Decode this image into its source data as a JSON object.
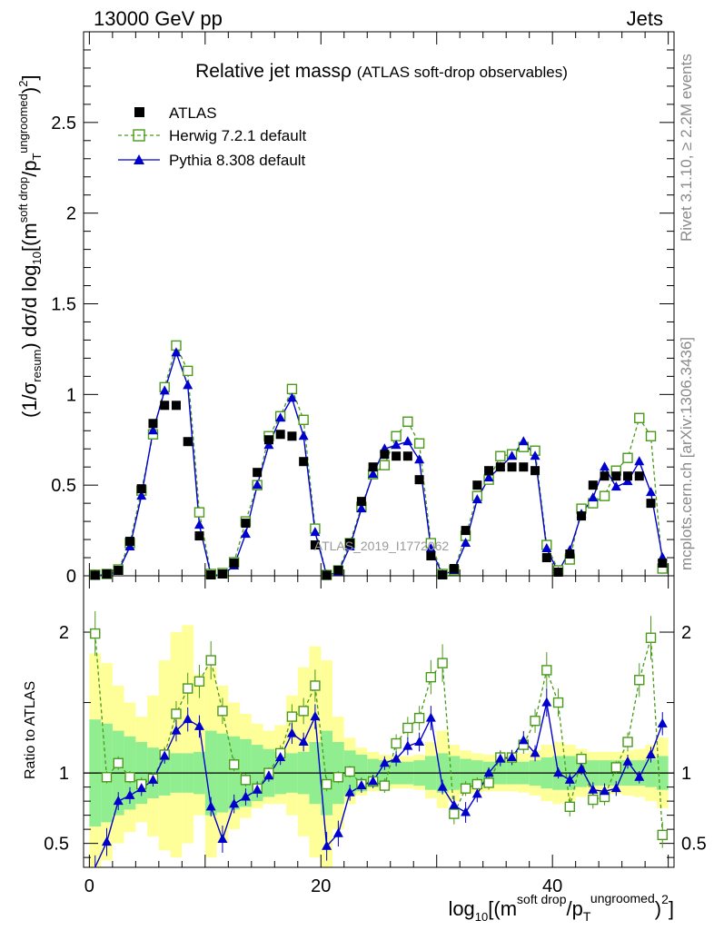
{
  "header": {
    "left": "13000 GeV pp",
    "right": "Jets"
  },
  "side_labels": {
    "rivet": "Rivet 3.1.10, ≥ 2.2M events",
    "mcplots": "mcplots.cern.ch [arXiv:1306.3436]"
  },
  "colors": {
    "atlas": "#000000",
    "herwig": "#4a9a1a",
    "pythia": "#0000cc",
    "band_inner": "#90ee90",
    "band_outer": "#ffff99"
  },
  "chart_data": [
    {
      "type": "scatter",
      "panel": "main",
      "title": "Relative jet massρ",
      "title_suffix": "(ATLAS soft-drop observables)",
      "ylabel": "(1/σresum) dσ/d log10[(m^soft drop/pT^ungroomed)^2]",
      "ylabel_parts": {
        "a": "(1/σ",
        "b": "resum",
        "c": ") dσ/d log",
        "d": "10",
        "e": "[(m",
        "f": "soft drop",
        "g": "/p",
        "h": "T",
        "i": "ungroomed",
        "j": ")",
        "k": "2",
        "l": "]"
      },
      "xlim": [
        -0.5,
        50.5
      ],
      "ylim": [
        0,
        3.0
      ],
      "yticks": [
        "0",
        "0.5",
        "1",
        "1.5",
        "2",
        "2.5"
      ],
      "watermark": "ATLAS_2019_I1772062",
      "x": [
        0.5,
        1.5,
        2.5,
        3.5,
        4.5,
        5.5,
        6.5,
        7.5,
        8.5,
        9.5,
        10.5,
        11.5,
        12.5,
        13.5,
        14.5,
        15.5,
        16.5,
        17.5,
        18.5,
        19.5,
        20.5,
        21.5,
        22.5,
        23.5,
        24.5,
        25.5,
        26.5,
        27.5,
        28.5,
        29.5,
        30.5,
        31.5,
        32.5,
        33.5,
        34.5,
        35.5,
        36.5,
        37.5,
        38.5,
        39.5,
        40.5,
        41.5,
        42.5,
        43.5,
        44.5,
        45.5,
        46.5,
        47.5,
        48.5,
        49.5
      ],
      "series": [
        {
          "name": "ATLAS",
          "legend": "ATLAS",
          "values": [
            0.003,
            0.01,
            0.03,
            0.19,
            0.48,
            0.84,
            0.94,
            0.94,
            0.74,
            0.22,
            0.005,
            0.01,
            0.07,
            0.29,
            0.57,
            0.75,
            0.78,
            0.77,
            0.63,
            0.17,
            0.003,
            0.03,
            0.18,
            0.41,
            0.6,
            0.67,
            0.66,
            0.66,
            0.53,
            0.11,
            0.005,
            0.04,
            0.25,
            0.5,
            0.58,
            0.6,
            0.6,
            0.6,
            0.58,
            0.1,
            0.02,
            0.12,
            0.33,
            0.5,
            0.55,
            0.55,
            0.55,
            0.55,
            0.4,
            0.07
          ]
        },
        {
          "name": "Herwig 7.2.1 default",
          "legend": "Herwig 7.2.1 default",
          "values": [
            0.006,
            0.01,
            0.035,
            0.18,
            0.47,
            0.78,
            1.04,
            1.27,
            1.13,
            0.35,
            0.01,
            0.015,
            0.075,
            0.3,
            0.5,
            0.77,
            0.88,
            1.03,
            0.86,
            0.26,
            0.005,
            0.03,
            0.18,
            0.38,
            0.56,
            0.61,
            0.77,
            0.85,
            0.73,
            0.18,
            0.01,
            0.03,
            0.22,
            0.44,
            0.53,
            0.66,
            0.67,
            0.71,
            0.69,
            0.17,
            0.03,
            0.09,
            0.37,
            0.4,
            0.44,
            0.58,
            0.65,
            0.87,
            0.77,
            0.04
          ]
        },
        {
          "name": "Pythia 8.308 default",
          "legend": "Pythia 8.308 default",
          "values": [
            0.002,
            0.005,
            0.025,
            0.16,
            0.44,
            0.8,
            1.02,
            1.23,
            1.05,
            0.28,
            0.003,
            0.005,
            0.055,
            0.23,
            0.5,
            0.72,
            0.87,
            0.98,
            0.77,
            0.24,
            0.002,
            0.02,
            0.16,
            0.37,
            0.56,
            0.7,
            0.72,
            0.74,
            0.64,
            0.15,
            0.005,
            0.03,
            0.18,
            0.42,
            0.54,
            0.6,
            0.66,
            0.74,
            0.66,
            0.15,
            0.02,
            0.14,
            0.34,
            0.43,
            0.6,
            0.49,
            0.52,
            0.63,
            0.46,
            0.1
          ]
        }
      ]
    },
    {
      "type": "line",
      "panel": "ratio",
      "ylabel": "Ratio to ATLAS",
      "xlabel": "log10[(m^soft drop/pT^ungroomed)^2]",
      "xlabel_parts": {
        "a": "log",
        "b": "10",
        "c": "[(m",
        "d": "soft drop",
        "e": "/p",
        "f": "T",
        "g": "ungroomed",
        "h": ")",
        "i": "2",
        "j": "]"
      },
      "xlim": [
        -0.5,
        50.5
      ],
      "ylim": [
        0.33,
        2.4
      ],
      "yticks": [
        "0.5",
        "1",
        "2"
      ],
      "xticks": [
        "0",
        "20",
        "40"
      ],
      "series": [
        {
          "name": "Herwig 7.2.1 default",
          "values": [
            1.99,
            0.97,
            1.07,
            0.97,
            0.92,
            0.96,
            1.13,
            1.42,
            1.6,
            1.65,
            1.8,
            1.44,
            1.06,
            0.95,
            0.89,
            1.0,
            1.14,
            1.4,
            1.44,
            1.62,
            0.92,
            0.97,
            1.01,
            0.92,
            0.94,
            0.91,
            1.21,
            1.32,
            1.39,
            1.68,
            1.78,
            0.71,
            0.89,
            0.92,
            0.93,
            1.11,
            1.11,
            1.2,
            1.37,
            1.73,
            1.5,
            0.76,
            1.1,
            0.81,
            0.83,
            1.04,
            1.22,
            1.66,
            1.96,
            0.56
          ]
        },
        {
          "name": "Pythia 8.308 default",
          "values": [
            0.29,
            0.51,
            0.8,
            0.84,
            0.89,
            0.95,
            1.12,
            1.3,
            1.38,
            1.33,
            0.76,
            0.53,
            0.78,
            0.83,
            0.88,
            0.98,
            1.11,
            1.28,
            1.22,
            1.4,
            0.48,
            0.57,
            0.86,
            0.91,
            0.94,
            1.07,
            1.1,
            1.19,
            1.22,
            1.39,
            0.9,
            0.77,
            0.72,
            0.85,
            1.0,
            1.1,
            1.11,
            1.23,
            1.14,
            1.5,
            1.0,
            0.95,
            1.03,
            0.88,
            0.87,
            0.89,
            1.08,
            0.97,
            1.13,
            1.35
          ]
        },
        {
          "name": "ATLAS band inner",
          "values_low": [
            0.62,
            0.65,
            0.7,
            0.74,
            0.78,
            0.82,
            0.84,
            0.86,
            0.86,
            0.85,
            0.7,
            0.72,
            0.74,
            0.76,
            0.8,
            0.83,
            0.85,
            0.86,
            0.85,
            0.78,
            0.7,
            0.78,
            0.84,
            0.87,
            0.9,
            0.91,
            0.92,
            0.92,
            0.91,
            0.88,
            0.86,
            0.88,
            0.9,
            0.91,
            0.92,
            0.92,
            0.92,
            0.92,
            0.91,
            0.89,
            0.88,
            0.88,
            0.9,
            0.91,
            0.91,
            0.91,
            0.91,
            0.91,
            0.9,
            0.88
          ],
          "values_high": [
            1.38,
            1.35,
            1.3,
            1.26,
            1.22,
            1.18,
            1.16,
            1.14,
            1.14,
            1.15,
            1.3,
            1.28,
            1.26,
            1.24,
            1.2,
            1.17,
            1.15,
            1.14,
            1.15,
            1.22,
            1.3,
            1.22,
            1.16,
            1.13,
            1.1,
            1.09,
            1.08,
            1.08,
            1.09,
            1.12,
            1.14,
            1.12,
            1.1,
            1.09,
            1.08,
            1.08,
            1.08,
            1.08,
            1.09,
            1.11,
            1.12,
            1.12,
            1.1,
            1.09,
            1.09,
            1.09,
            1.09,
            1.09,
            1.1,
            1.12
          ]
        },
        {
          "name": "ATLAS band outer",
          "values_low": [
            0.3,
            0.38,
            0.5,
            0.58,
            0.65,
            0.55,
            0.45,
            0.4,
            0.5,
            0.7,
            0.4,
            0.5,
            0.6,
            0.68,
            0.75,
            0.78,
            0.78,
            0.7,
            0.55,
            0.4,
            0.3,
            0.6,
            0.78,
            0.84,
            0.87,
            0.88,
            0.89,
            0.89,
            0.88,
            0.82,
            0.75,
            0.8,
            0.85,
            0.86,
            0.87,
            0.87,
            0.87,
            0.86,
            0.84,
            0.8,
            0.78,
            0.8,
            0.83,
            0.85,
            0.85,
            0.85,
            0.84,
            0.83,
            0.8,
            0.75
          ],
          "values_high": [
            1.85,
            1.78,
            1.62,
            1.5,
            1.4,
            1.55,
            1.8,
            2.0,
            2.05,
            1.7,
            1.75,
            1.62,
            1.5,
            1.42,
            1.35,
            1.3,
            1.34,
            1.55,
            1.75,
            1.9,
            1.8,
            1.4,
            1.25,
            1.18,
            1.15,
            1.13,
            1.12,
            1.12,
            1.13,
            1.22,
            1.3,
            1.2,
            1.16,
            1.14,
            1.13,
            1.13,
            1.13,
            1.14,
            1.16,
            1.2,
            1.22,
            1.2,
            1.17,
            1.15,
            1.15,
            1.15,
            1.16,
            1.17,
            1.2,
            1.25
          ]
        }
      ]
    }
  ]
}
